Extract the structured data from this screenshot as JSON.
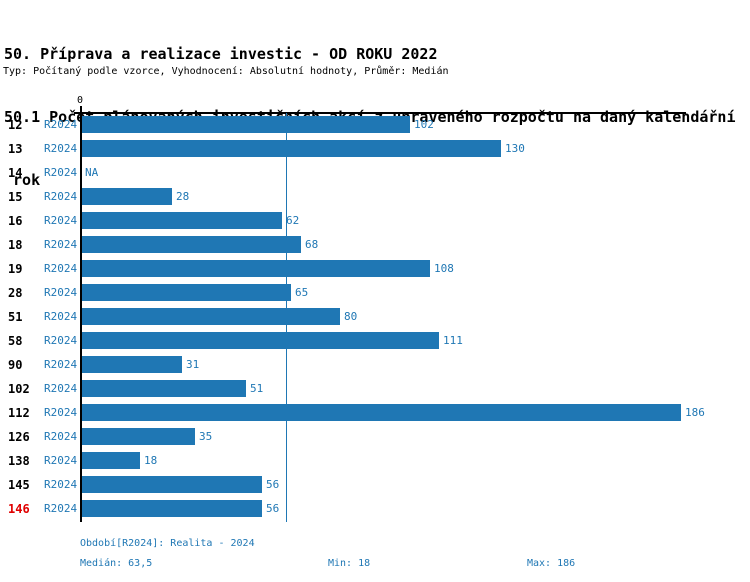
{
  "header": {
    "title_line1": "50. Příprava a realizace investic - OD ROKU 2022",
    "title_line2": "50.1 Počet plánovaných investičních akcí z upraveného rozpočtu na daný kalendářní",
    "title_line3": " rok",
    "subtitle": "Typ: Počítaný podle vzorce, Vyhodnocení: Absolutní hodnoty, Průměr: Medián"
  },
  "chart_data": {
    "type": "bar",
    "orientation": "horizontal",
    "axis_origin_label": "0",
    "na_label": "NA",
    "xlim": [
      0,
      190
    ],
    "median": 63.5,
    "median_line": true,
    "colors": {
      "bar": "#1F77B4",
      "label_blue": "#1F77B4",
      "highlight_red": "#E00000",
      "axis_black": "#000000"
    },
    "categories": [
      "12",
      "13",
      "14",
      "15",
      "16",
      "18",
      "19",
      "28",
      "51",
      "58",
      "90",
      "102",
      "112",
      "126",
      "138",
      "145",
      "146"
    ],
    "series": [
      {
        "name": "R2024",
        "values": [
          102,
          130,
          null,
          28,
          62,
          68,
          108,
          65,
          80,
          111,
          31,
          51,
          186,
          35,
          18,
          56,
          56
        ]
      }
    ],
    "rows": [
      {
        "label": "12",
        "period": "R2024",
        "value": 102,
        "highlight": false
      },
      {
        "label": "13",
        "period": "R2024",
        "value": 130,
        "highlight": false
      },
      {
        "label": "14",
        "period": "R2024",
        "value": null,
        "highlight": false
      },
      {
        "label": "15",
        "period": "R2024",
        "value": 28,
        "highlight": false
      },
      {
        "label": "16",
        "period": "R2024",
        "value": 62,
        "highlight": false
      },
      {
        "label": "18",
        "period": "R2024",
        "value": 68,
        "highlight": false
      },
      {
        "label": "19",
        "period": "R2024",
        "value": 108,
        "highlight": false
      },
      {
        "label": "28",
        "period": "R2024",
        "value": 65,
        "highlight": false
      },
      {
        "label": "51",
        "period": "R2024",
        "value": 80,
        "highlight": false
      },
      {
        "label": "58",
        "period": "R2024",
        "value": 111,
        "highlight": false
      },
      {
        "label": "90",
        "period": "R2024",
        "value": 31,
        "highlight": false
      },
      {
        "label": "102",
        "period": "R2024",
        "value": 51,
        "highlight": false
      },
      {
        "label": "112",
        "period": "R2024",
        "value": 186,
        "highlight": false
      },
      {
        "label": "126",
        "period": "R2024",
        "value": 35,
        "highlight": false
      },
      {
        "label": "138",
        "period": "R2024",
        "value": 18,
        "highlight": false
      },
      {
        "label": "145",
        "period": "R2024",
        "value": 56,
        "highlight": false
      },
      {
        "label": "146",
        "period": "R2024",
        "value": 56,
        "highlight": true
      }
    ]
  },
  "footer": {
    "period_label": "Období[R2024]: Realita - 2024",
    "median_label": "Medián: 63,5",
    "min_label": "Min: 18",
    "max_label": "Max: 186"
  }
}
